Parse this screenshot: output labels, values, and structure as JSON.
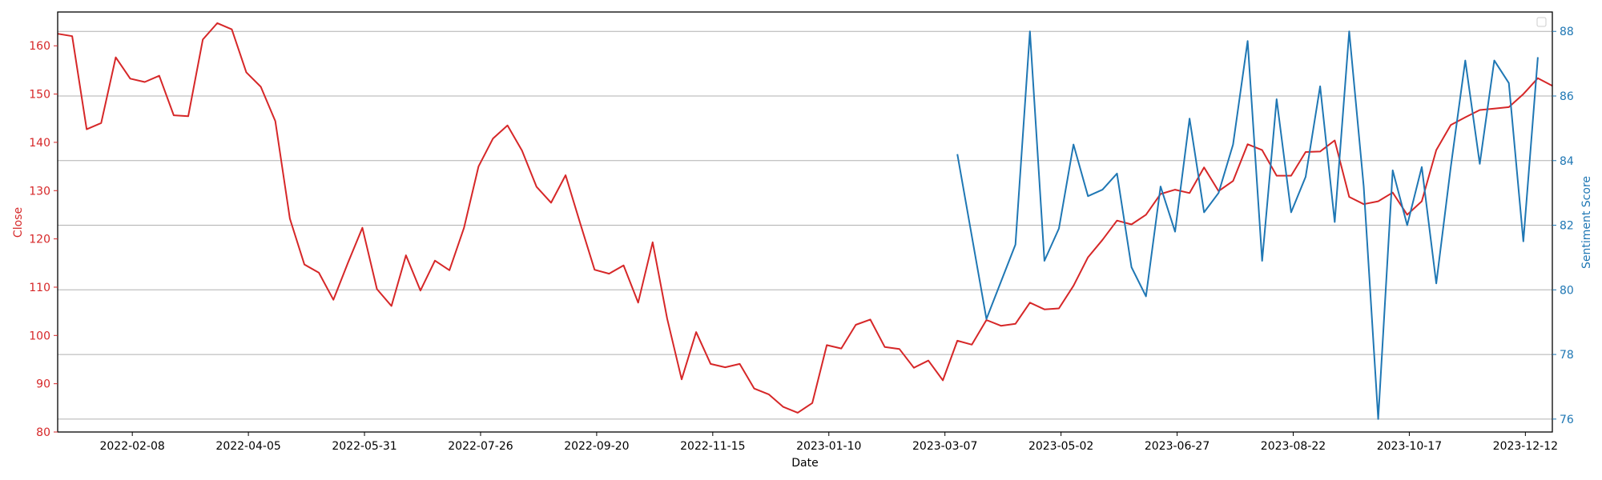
{
  "chart_data": {
    "type": "line",
    "xlabel": "Date",
    "x_ticks": [
      "2022-02-08",
      "2022-04-05",
      "2022-05-31",
      "2022-07-26",
      "2022-09-20",
      "2022-11-15",
      "2023-01-10",
      "2023-03-07",
      "2023-05-02",
      "2023-06-27",
      "2023-08-22",
      "2023-10-17",
      "2023-12-12"
    ],
    "xlim": [
      "2022-01-03",
      "2023-12-25"
    ],
    "left_axis": {
      "label": "Close",
      "color": "#d62728",
      "ylim": [
        80,
        167
      ],
      "ticks": [
        80,
        90,
        100,
        110,
        120,
        130,
        140,
        150,
        160
      ]
    },
    "right_axis": {
      "label": "Sentiment Score",
      "color": "#1f77b4",
      "ylim": [
        75.6,
        88.6
      ],
      "ticks": [
        76,
        78,
        80,
        82,
        84,
        86,
        88
      ]
    },
    "grid": "horizontal",
    "legend": "top-right (empty)",
    "series": [
      {
        "name": "Close",
        "axis": "left",
        "color": "#d62728",
        "points": [
          [
            "2022-01-03",
            162.5
          ],
          [
            "2022-01-10",
            162.0
          ],
          [
            "2022-01-17",
            142.7
          ],
          [
            "2022-01-24",
            144.0
          ],
          [
            "2022-01-31",
            157.6
          ],
          [
            "2022-02-07",
            153.2
          ],
          [
            "2022-02-14",
            152.5
          ],
          [
            "2022-02-21",
            153.8
          ],
          [
            "2022-02-28",
            145.6
          ],
          [
            "2022-03-07",
            145.4
          ],
          [
            "2022-03-14",
            161.3
          ],
          [
            "2022-03-21",
            164.7
          ],
          [
            "2022-03-28",
            163.4
          ],
          [
            "2022-04-04",
            154.5
          ],
          [
            "2022-04-11",
            151.5
          ],
          [
            "2022-04-18",
            144.4
          ],
          [
            "2022-04-25",
            124.2
          ],
          [
            "2022-05-02",
            114.7
          ],
          [
            "2022-05-09",
            113.0
          ],
          [
            "2022-05-16",
            107.4
          ],
          [
            "2022-05-23",
            115.0
          ],
          [
            "2022-05-30",
            122.3
          ],
          [
            "2022-06-06",
            109.6
          ],
          [
            "2022-06-13",
            106.1
          ],
          [
            "2022-06-20",
            116.6
          ],
          [
            "2022-06-27",
            109.3
          ],
          [
            "2022-07-04",
            115.5
          ],
          [
            "2022-07-11",
            113.5
          ],
          [
            "2022-07-18",
            122.3
          ],
          [
            "2022-07-25",
            135.0
          ],
          [
            "2022-08-01",
            140.8
          ],
          [
            "2022-08-08",
            143.5
          ],
          [
            "2022-08-15",
            138.3
          ],
          [
            "2022-08-22",
            130.8
          ],
          [
            "2022-08-29",
            127.5
          ],
          [
            "2022-09-05",
            133.2
          ],
          [
            "2022-09-12",
            123.3
          ],
          [
            "2022-09-19",
            113.6
          ],
          [
            "2022-09-26",
            112.8
          ],
          [
            "2022-10-03",
            114.5
          ],
          [
            "2022-10-10",
            106.8
          ],
          [
            "2022-10-17",
            119.3
          ],
          [
            "2022-10-24",
            103.5
          ],
          [
            "2022-10-31",
            90.9
          ],
          [
            "2022-11-07",
            100.7
          ],
          [
            "2022-11-14",
            94.1
          ],
          [
            "2022-11-21",
            93.4
          ],
          [
            "2022-11-28",
            94.1
          ],
          [
            "2022-12-05",
            89.0
          ],
          [
            "2022-12-12",
            87.8
          ],
          [
            "2022-12-19",
            85.2
          ],
          [
            "2022-12-26",
            84.0
          ],
          [
            "2023-01-02",
            86.0
          ],
          [
            "2023-01-09",
            98.0
          ],
          [
            "2023-01-16",
            97.3
          ],
          [
            "2023-01-23",
            102.2
          ],
          [
            "2023-01-30",
            103.3
          ],
          [
            "2023-02-06",
            97.6
          ],
          [
            "2023-02-13",
            97.2
          ],
          [
            "2023-02-20",
            93.3
          ],
          [
            "2023-02-27",
            94.8
          ],
          [
            "2023-03-06",
            90.7
          ],
          [
            "2023-03-13",
            98.9
          ],
          [
            "2023-03-20",
            98.1
          ],
          [
            "2023-03-27",
            103.2
          ],
          [
            "2023-04-03",
            102.0
          ],
          [
            "2023-04-10",
            102.4
          ],
          [
            "2023-04-17",
            106.8
          ],
          [
            "2023-04-24",
            105.4
          ],
          [
            "2023-05-01",
            105.6
          ],
          [
            "2023-05-08",
            110.3
          ],
          [
            "2023-05-15",
            116.2
          ],
          [
            "2023-05-22",
            119.8
          ],
          [
            "2023-05-29",
            123.8
          ],
          [
            "2023-06-05",
            123.0
          ],
          [
            "2023-06-12",
            125.0
          ],
          [
            "2023-06-19",
            129.3
          ],
          [
            "2023-06-26",
            130.2
          ],
          [
            "2023-07-03",
            129.5
          ],
          [
            "2023-07-10",
            134.8
          ],
          [
            "2023-07-17",
            129.9
          ],
          [
            "2023-07-24",
            132.0
          ],
          [
            "2023-07-31",
            139.6
          ],
          [
            "2023-08-07",
            138.4
          ],
          [
            "2023-08-14",
            133.1
          ],
          [
            "2023-08-21",
            133.1
          ],
          [
            "2023-08-28",
            138.0
          ],
          [
            "2023-09-04",
            138.1
          ],
          [
            "2023-09-11",
            140.4
          ],
          [
            "2023-09-18",
            128.7
          ],
          [
            "2023-09-25",
            127.2
          ],
          [
            "2023-10-02",
            127.8
          ],
          [
            "2023-10-09",
            129.6
          ],
          [
            "2023-10-16",
            125.0
          ],
          [
            "2023-10-23",
            127.8
          ],
          [
            "2023-10-30",
            138.4
          ],
          [
            "2023-11-06",
            143.6
          ],
          [
            "2023-11-13",
            145.2
          ],
          [
            "2023-11-20",
            146.7
          ],
          [
            "2023-11-27",
            147.0
          ],
          [
            "2023-12-04",
            147.3
          ],
          [
            "2023-12-11",
            150.0
          ],
          [
            "2023-12-18",
            153.3
          ],
          [
            "2023-12-25",
            151.7
          ]
        ]
      },
      {
        "name": "Sentiment Score",
        "axis": "right",
        "color": "#1f77b4",
        "points": [
          [
            "2023-03-13",
            84.2
          ],
          [
            "2023-03-27",
            79.1
          ],
          [
            "2023-04-10",
            81.4
          ],
          [
            "2023-04-17",
            88.0
          ],
          [
            "2023-04-24",
            80.9
          ],
          [
            "2023-05-01",
            81.9
          ],
          [
            "2023-05-08",
            84.5
          ],
          [
            "2023-05-15",
            82.9
          ],
          [
            "2023-05-22",
            83.1
          ],
          [
            "2023-05-29",
            83.6
          ],
          [
            "2023-06-05",
            80.7
          ],
          [
            "2023-06-12",
            79.8
          ],
          [
            "2023-06-19",
            83.2
          ],
          [
            "2023-06-26",
            81.8
          ],
          [
            "2023-07-03",
            85.3
          ],
          [
            "2023-07-10",
            82.4
          ],
          [
            "2023-07-17",
            83.0
          ],
          [
            "2023-07-24",
            84.5
          ],
          [
            "2023-07-31",
            87.7
          ],
          [
            "2023-08-07",
            80.9
          ],
          [
            "2023-08-14",
            85.9
          ],
          [
            "2023-08-21",
            82.4
          ],
          [
            "2023-08-28",
            83.5
          ],
          [
            "2023-09-04",
            86.3
          ],
          [
            "2023-09-11",
            82.1
          ],
          [
            "2023-09-18",
            88.0
          ],
          [
            "2023-09-25",
            83.2
          ],
          [
            "2023-10-02",
            76.0
          ],
          [
            "2023-10-09",
            83.7
          ],
          [
            "2023-10-16",
            82.0
          ],
          [
            "2023-10-23",
            83.8
          ],
          [
            "2023-10-30",
            80.2
          ],
          [
            "2023-11-06",
            83.8
          ],
          [
            "2023-11-13",
            87.1
          ],
          [
            "2023-11-20",
            83.9
          ],
          [
            "2023-11-27",
            87.1
          ],
          [
            "2023-12-04",
            86.4
          ],
          [
            "2023-12-11",
            81.5
          ],
          [
            "2023-12-18",
            87.2
          ]
        ]
      }
    ]
  }
}
